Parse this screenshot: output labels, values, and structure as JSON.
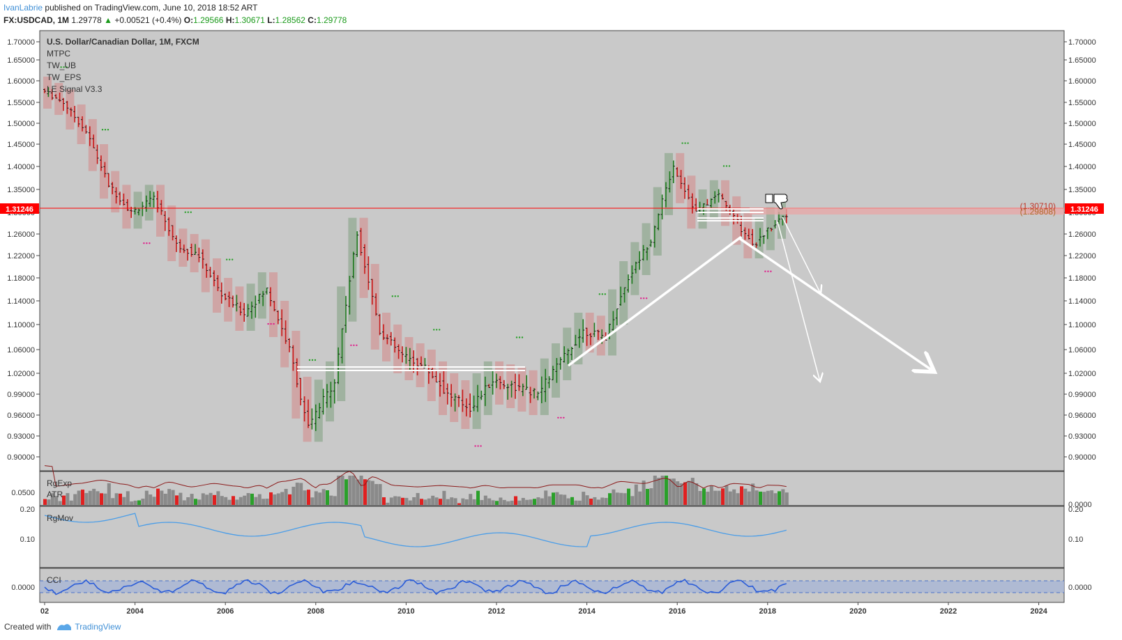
{
  "header": {
    "author": "IvanLabrie",
    "published_text": "published on TradingView.com, June 10, 2018 18:52 ART",
    "symbol": "FX:USDCAD, 1M",
    "last": "1.29778",
    "change": "+0.00521 (+0.4%)",
    "o_label": "O:",
    "o_value": "1.29566",
    "h_label": "H:",
    "h_value": "1.30671",
    "l_label": "L:",
    "l_value": "1.28562",
    "c_label": "C:",
    "c_value": "1.29778"
  },
  "legend": {
    "title": "U.S. Dollar/Canadian Dollar, 1M, FXCM",
    "indicators": [
      "MTPC",
      "TW_UB",
      "TW_EPS",
      "LE Signal V3.3"
    ]
  },
  "price_line": {
    "value": "1.31246",
    "color": "#ff0000"
  },
  "zone_labels": [
    "(1.30710)",
    "(1.29808)"
  ],
  "colors": {
    "up": "#1e7a1e",
    "down": "#c81919",
    "bg": "#c9c9c9",
    "ribbon_up": "#8fa88f",
    "ribbon_down": "#d29595"
  },
  "panels": {
    "vol": {
      "labels": [
        "RgExp",
        "ATR"
      ],
      "tick": "0.0500",
      "right_tick": "0.0000"
    },
    "mov": {
      "labels": [
        "RgMov"
      ],
      "ticks": [
        "0.20",
        "0.10"
      ]
    },
    "cci": {
      "labels": [
        "CCI"
      ],
      "tick": "0.0000"
    }
  },
  "footer": {
    "created": "Created with",
    "brand": "TradingView"
  },
  "chart_data": {
    "type": "candlestick",
    "title": "U.S. Dollar/Canadian Dollar, 1M, FXCM",
    "y_ticks": [
      "1.70000",
      "1.65000",
      "1.60000",
      "1.55000",
      "1.50000",
      "1.45000",
      "1.40000",
      "1.35000",
      "1.30000",
      "1.26000",
      "1.22000",
      "1.18000",
      "1.14000",
      "1.10000",
      "1.06000",
      "1.02000",
      "0.99000",
      "0.96000",
      "0.93000",
      "0.90000"
    ],
    "x_ticks": [
      "02",
      "2004",
      "2006",
      "2008",
      "2010",
      "2012",
      "2014",
      "2016",
      "2018",
      "2020",
      "2022",
      "2024"
    ],
    "trend_points": [
      {
        "t": 2002.0,
        "p": 1.58
      },
      {
        "t": 2002.5,
        "p": 1.55
      },
      {
        "t": 2003.0,
        "p": 1.48
      },
      {
        "t": 2003.5,
        "p": 1.36
      },
      {
        "t": 2004.0,
        "p": 1.3
      },
      {
        "t": 2004.5,
        "p": 1.33
      },
      {
        "t": 2005.0,
        "p": 1.24
      },
      {
        "t": 2005.5,
        "p": 1.22
      },
      {
        "t": 2006.0,
        "p": 1.15
      },
      {
        "t": 2006.5,
        "p": 1.12
      },
      {
        "t": 2007.0,
        "p": 1.16
      },
      {
        "t": 2007.5,
        "p": 1.06
      },
      {
        "t": 2007.9,
        "p": 0.94
      },
      {
        "t": 2008.5,
        "p": 1.01
      },
      {
        "t": 2009.0,
        "p": 1.26
      },
      {
        "t": 2009.5,
        "p": 1.09
      },
      {
        "t": 2010.0,
        "p": 1.05
      },
      {
        "t": 2010.5,
        "p": 1.03
      },
      {
        "t": 2011.0,
        "p": 0.99
      },
      {
        "t": 2011.5,
        "p": 0.97
      },
      {
        "t": 2012.0,
        "p": 1.01
      },
      {
        "t": 2012.5,
        "p": 1.0
      },
      {
        "t": 2013.0,
        "p": 0.99
      },
      {
        "t": 2013.5,
        "p": 1.04
      },
      {
        "t": 2014.0,
        "p": 1.09
      },
      {
        "t": 2014.5,
        "p": 1.08
      },
      {
        "t": 2015.0,
        "p": 1.18
      },
      {
        "t": 2015.5,
        "p": 1.25
      },
      {
        "t": 2016.0,
        "p": 1.4
      },
      {
        "t": 2016.5,
        "p": 1.3
      },
      {
        "t": 2017.0,
        "p": 1.34
      },
      {
        "t": 2017.5,
        "p": 1.27
      },
      {
        "t": 2017.8,
        "p": 1.24
      },
      {
        "t": 2018.0,
        "p": 1.26
      },
      {
        "t": 2018.45,
        "p": 1.298
      }
    ]
  }
}
